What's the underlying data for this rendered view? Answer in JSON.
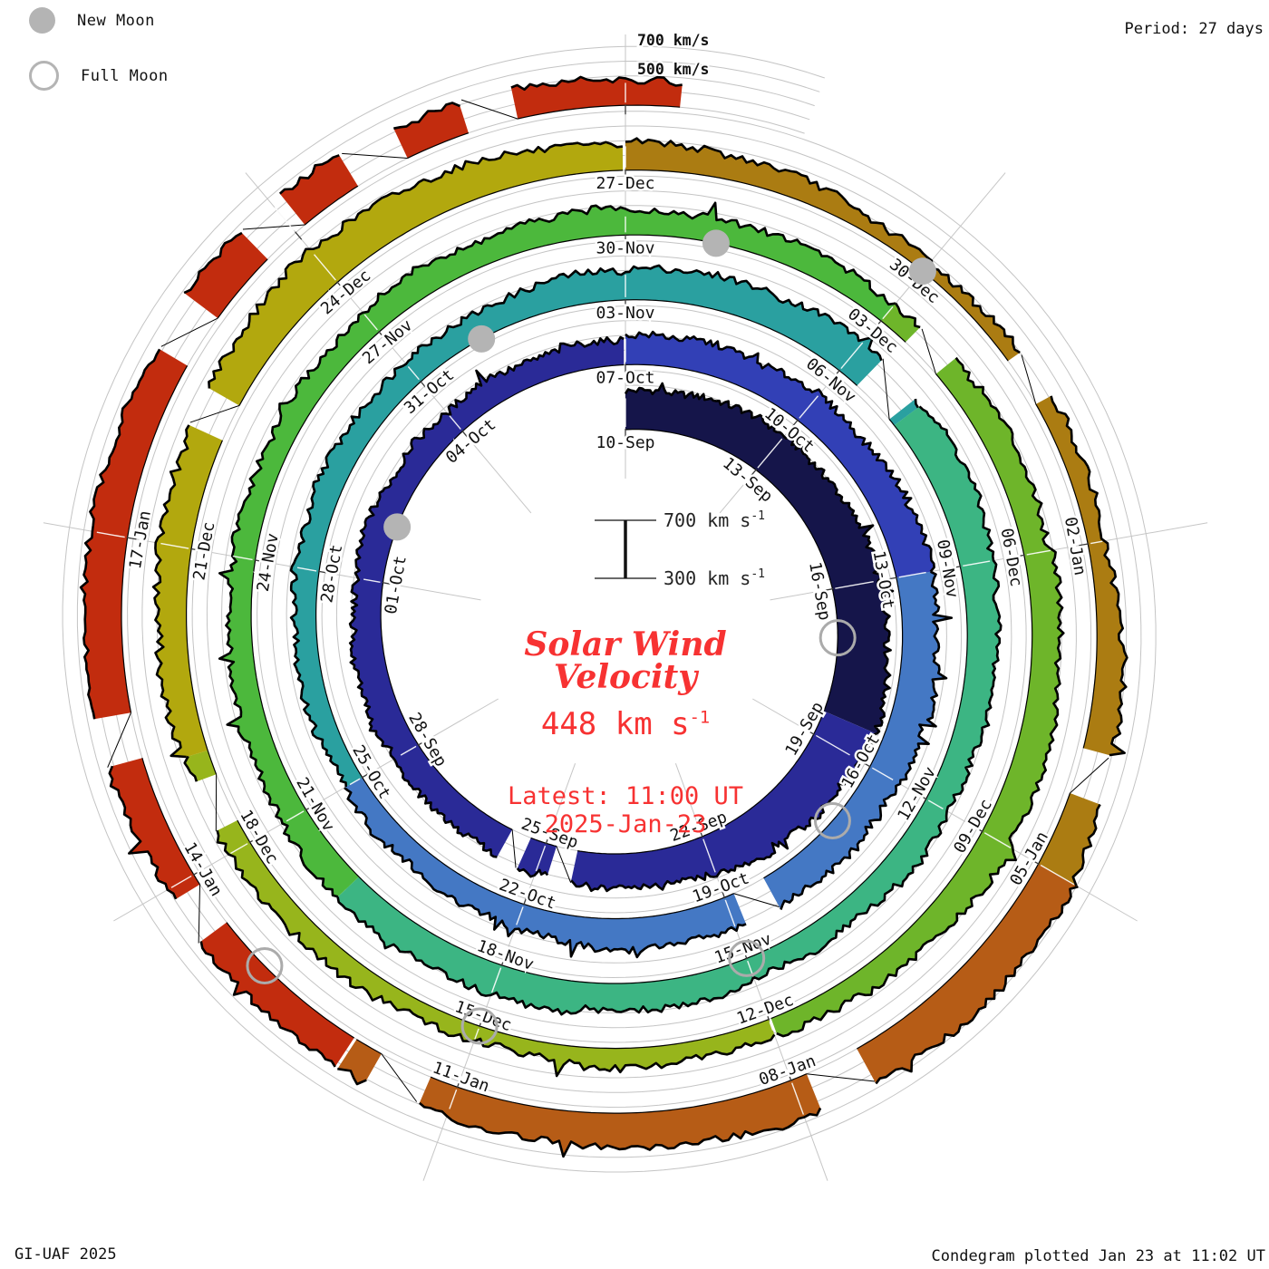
{
  "legend": {
    "new_moon_label": "New Moon",
    "full_moon_label": "Full Moon",
    "moon_gray": "#b4b4b4"
  },
  "header": {
    "period_label": "Period: 27 days"
  },
  "footer": {
    "left": "GI-UAF 2025",
    "right": "Condegram plotted Jan 23 at 11:02 UT"
  },
  "center": {
    "title_line1": "Solar Wind",
    "title_line2": "Velocity",
    "value_text": "448 km s",
    "value_sup": "-1",
    "latest_line": "Latest: 11:00 UT",
    "latest_date": "2025-Jan-23",
    "scale_top": "700 km s",
    "scale_top_sup": "-1",
    "scale_bottom": "300 km s",
    "scale_bottom_sup": "-1",
    "accent_red": "#f73232"
  },
  "chart_data": {
    "type": "area",
    "variant": "condegram-polar-spiral",
    "title": "Solar Wind Velocity",
    "ylabel": "solar wind velocity (km/s)",
    "ylim": [
      300,
      700
    ],
    "grid_levels_km_s": [
      300,
      400,
      500,
      600,
      700
    ],
    "end_scale_labels": [
      "700 km/s",
      "500 km/s"
    ],
    "period_days": 27,
    "tick_interval_days": 3,
    "start_date": "2024-Sep-10",
    "end_date": "2025-Jan-23",
    "latest_time_ut": "11:00 UT",
    "latest_velocity_km_s": 448,
    "end_day": 135.45,
    "time_direction": "clockwise-outward",
    "date_labels": [
      "10-Sep",
      "13-Sep",
      "16-Sep",
      "19-Sep",
      "22-Sep",
      "25-Sep",
      "28-Sep",
      "01-Oct",
      "04-Oct",
      "07-Oct",
      "10-Oct",
      "13-Oct",
      "16-Oct",
      "19-Oct",
      "22-Oct",
      "25-Oct",
      "28-Oct",
      "31-Oct",
      "03-Nov",
      "06-Nov",
      "09-Nov",
      "12-Nov",
      "15-Nov",
      "18-Nov",
      "21-Nov",
      "24-Nov",
      "27-Nov",
      "30-Nov",
      "03-Dec",
      "06-Dec",
      "09-Dec",
      "12-Dec",
      "15-Dec",
      "18-Dec",
      "21-Dec",
      "24-Dec",
      "27-Dec",
      "30-Dec",
      "02-Jan",
      "05-Jan",
      "08-Jan",
      "11-Jan",
      "14-Jan",
      "17-Jan"
    ],
    "series": [
      {
        "name": "solar-wind-velocity-km-s",
        "x_days": [
          0,
          3,
          6,
          9,
          12,
          15,
          18,
          21,
          24,
          27,
          30,
          33,
          36,
          39,
          42,
          45,
          48,
          51,
          54,
          57,
          60,
          63,
          66,
          69,
          72,
          75,
          78,
          81,
          84,
          87,
          90,
          93,
          96,
          99,
          102,
          105,
          108,
          111,
          114,
          117,
          120,
          123,
          126,
          129,
          132,
          135.45
        ],
        "values": [
          545,
          600,
          640,
          670,
          575,
          515,
          485,
          500,
          470,
          485,
          515,
          545,
          535,
          515,
          485,
          435,
          460,
          485,
          495,
          545,
          535,
          485,
          455,
          515,
          485,
          455,
          470,
          485,
          455,
          485,
          515,
          435,
          410,
          455,
          515,
          575,
          485,
          390,
          425,
          575,
          575,
          515,
          515,
          545,
          560,
          448
        ]
      }
    ],
    "color_segments": [
      {
        "from_day": 0,
        "color": "#15154a"
      },
      {
        "from_day": 8.5,
        "color": "#2a2a97"
      },
      {
        "from_day": 27,
        "color": "#3240b6"
      },
      {
        "from_day": 33,
        "color": "#4478c4"
      },
      {
        "from_day": 45,
        "color": "#2aa0a0"
      },
      {
        "from_day": 58,
        "color": "#3cb583"
      },
      {
        "from_day": 71,
        "color": "#4cb83c"
      },
      {
        "from_day": 84,
        "color": "#6eb52a"
      },
      {
        "from_day": 93,
        "color": "#97b51c"
      },
      {
        "from_day": 100,
        "color": "#b2a80e"
      },
      {
        "from_day": 108,
        "color": "#ab7c12"
      },
      {
        "from_day": 117,
        "color": "#b65c16"
      },
      {
        "from_day": 124,
        "color": "#c22c0e"
      }
    ],
    "data_gaps": [
      {
        "day": 14.6,
        "w": 0.4
      },
      {
        "day": 15.5,
        "w": 0.35
      },
      {
        "day": 38.6,
        "w": 0.5
      },
      {
        "day": 57.6,
        "w": 0.6
      },
      {
        "day": 84.6,
        "w": 0.45
      },
      {
        "day": 99.5,
        "w": 0.5
      },
      {
        "day": 103.3,
        "w": 0.35
      },
      {
        "day": 112.4,
        "w": 0.45
      },
      {
        "day": 116.1,
        "w": 0.4
      },
      {
        "day": 119.6,
        "w": 0.5
      },
      {
        "day": 123.5,
        "w": 0.45
      },
      {
        "day": 125.7,
        "w": 0.4
      },
      {
        "day": 127.3,
        "w": 0.4
      },
      {
        "day": 130.8,
        "w": 0.45
      },
      {
        "day": 131.9,
        "w": 0.4
      },
      {
        "day": 132.9,
        "w": 0.45
      },
      {
        "day": 133.9,
        "w": 0.4
      }
    ],
    "new_moons": [
      {
        "date": "2024-Oct-02",
        "day": 22
      },
      {
        "date": "2024-Nov-01",
        "day": 52
      },
      {
        "date": "2024-Dec-01",
        "day": 82
      },
      {
        "date": "2024-Dec-30",
        "day": 111
      }
    ],
    "full_moons": [
      {
        "date": "2024-Sep-17",
        "day": 7
      },
      {
        "date": "2024-Oct-17",
        "day": 37
      },
      {
        "date": "2024-Nov-15",
        "day": 66
      },
      {
        "date": "2024-Dec-15",
        "day": 96
      },
      {
        "date": "2025-Jan-13",
        "day": 125
      }
    ]
  }
}
